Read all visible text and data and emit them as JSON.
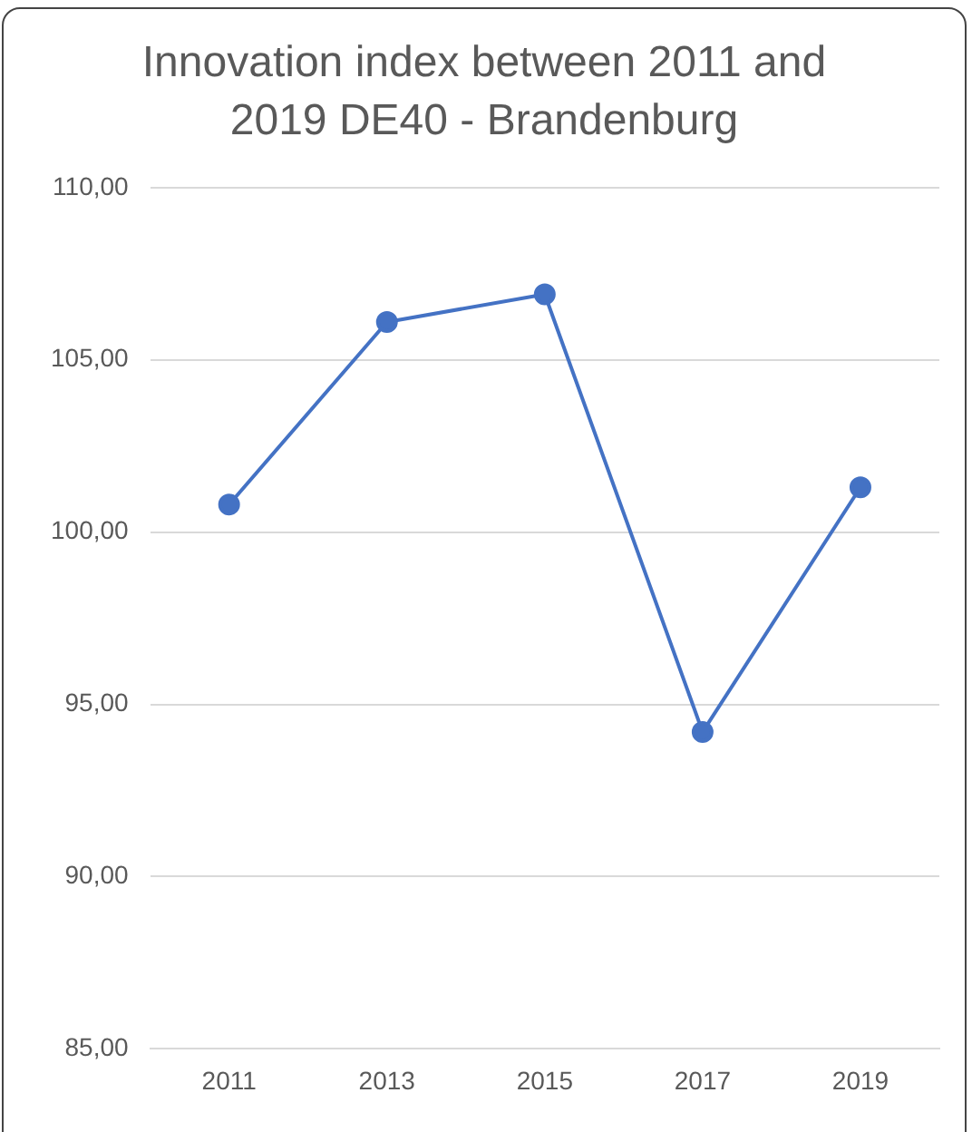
{
  "chart_data": {
    "type": "line",
    "title": "Innovation index between 2011 and 2019 DE40 - Brandenburg",
    "categories": [
      "2011",
      "2013",
      "2015",
      "2017",
      "2019"
    ],
    "series": [
      {
        "color": "#4472c4",
        "values": [
          100.8,
          106.1,
          106.9,
          94.2,
          101.3
        ]
      }
    ],
    "ylim": [
      85,
      110
    ],
    "yticks": [
      {
        "value": 85,
        "label": "85,00"
      },
      {
        "value": 90,
        "label": "90,00"
      },
      {
        "value": 95,
        "label": "95,00"
      },
      {
        "value": 100,
        "label": "100,00"
      },
      {
        "value": 105,
        "label": "105,00"
      },
      {
        "value": 110,
        "label": "110,00"
      }
    ],
    "grid": "y",
    "marker": "circle",
    "line_style": "solid",
    "legend": false
  }
}
